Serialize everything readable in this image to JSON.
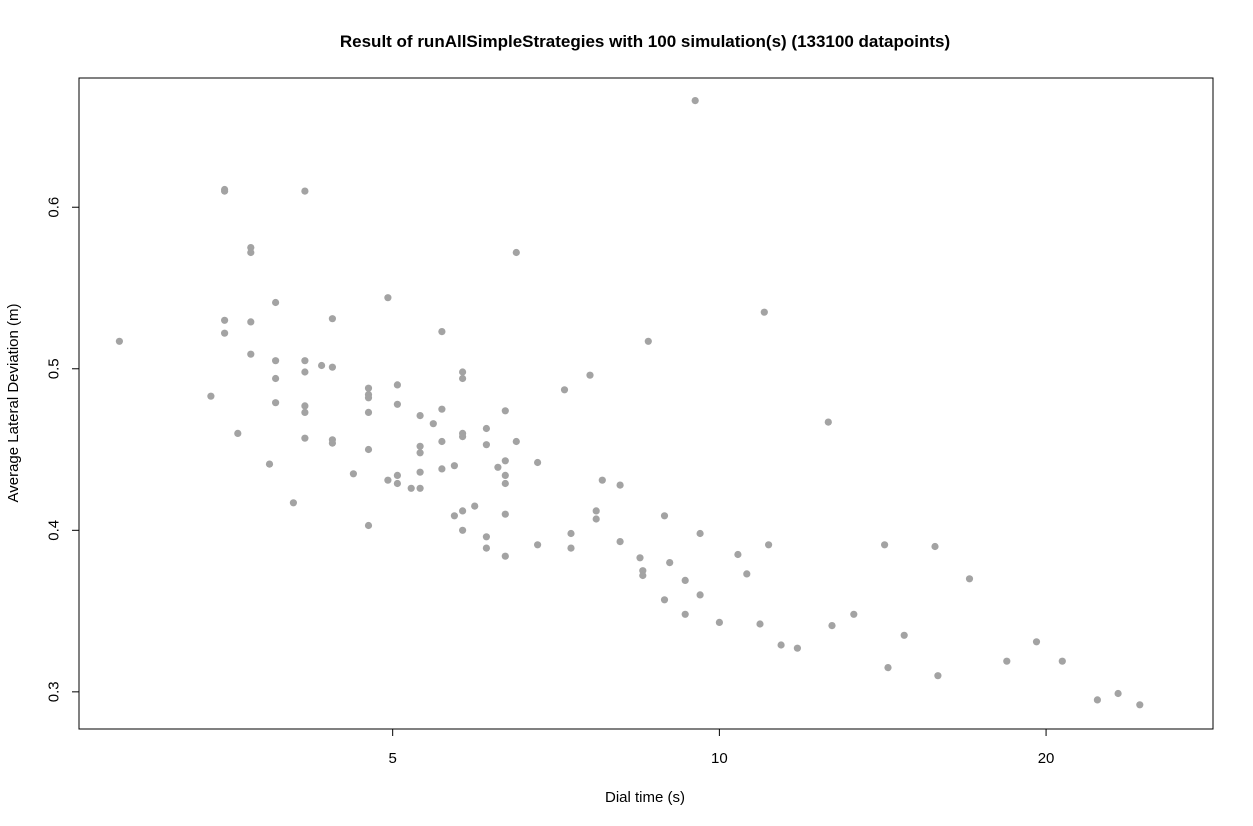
{
  "chart_data": {
    "type": "scatter",
    "title": "Result of runAllSimpleStrategies with 100 simulation(s) (133100 datapoints)",
    "xlabel": "Dial time (s)",
    "ylabel": "Average Lateral Deviation (m)",
    "x_scale": "log",
    "xlim": [
      2.57,
      28.5
    ],
    "ylim": [
      0.277,
      0.68
    ],
    "x_ticks": [
      5,
      10,
      20
    ],
    "x_tick_labels": [
      "5",
      "10",
      "20"
    ],
    "y_ticks": [
      0.3,
      0.4,
      0.5,
      0.6
    ],
    "y_tick_labels": [
      "0.3",
      "0.4",
      "0.5",
      "0.6"
    ],
    "grid": false,
    "point_color": "#a3a3a3",
    "points": [
      {
        "x": 2.8,
        "y": 0.517
      },
      {
        "x": 3.4,
        "y": 0.483
      },
      {
        "x": 3.5,
        "y": 0.611
      },
      {
        "x": 3.5,
        "y": 0.61
      },
      {
        "x": 3.5,
        "y": 0.53
      },
      {
        "x": 3.5,
        "y": 0.522
      },
      {
        "x": 3.6,
        "y": 0.46
      },
      {
        "x": 3.7,
        "y": 0.575
      },
      {
        "x": 3.7,
        "y": 0.572
      },
      {
        "x": 3.7,
        "y": 0.529
      },
      {
        "x": 3.7,
        "y": 0.509
      },
      {
        "x": 3.85,
        "y": 0.441
      },
      {
        "x": 3.9,
        "y": 0.541
      },
      {
        "x": 3.9,
        "y": 0.505
      },
      {
        "x": 3.9,
        "y": 0.494
      },
      {
        "x": 3.9,
        "y": 0.479
      },
      {
        "x": 4.05,
        "y": 0.417
      },
      {
        "x": 4.15,
        "y": 0.61
      },
      {
        "x": 4.15,
        "y": 0.505
      },
      {
        "x": 4.15,
        "y": 0.498
      },
      {
        "x": 4.15,
        "y": 0.477
      },
      {
        "x": 4.15,
        "y": 0.473
      },
      {
        "x": 4.15,
        "y": 0.457
      },
      {
        "x": 4.3,
        "y": 0.502
      },
      {
        "x": 4.4,
        "y": 0.531
      },
      {
        "x": 4.4,
        "y": 0.501
      },
      {
        "x": 4.4,
        "y": 0.456
      },
      {
        "x": 4.4,
        "y": 0.454
      },
      {
        "x": 4.6,
        "y": 0.435
      },
      {
        "x": 4.75,
        "y": 0.488
      },
      {
        "x": 4.75,
        "y": 0.484
      },
      {
        "x": 4.75,
        "y": 0.482
      },
      {
        "x": 4.75,
        "y": 0.473
      },
      {
        "x": 4.75,
        "y": 0.45
      },
      {
        "x": 4.75,
        "y": 0.403
      },
      {
        "x": 4.95,
        "y": 0.544
      },
      {
        "x": 4.95,
        "y": 0.431
      },
      {
        "x": 5.05,
        "y": 0.49
      },
      {
        "x": 5.05,
        "y": 0.478
      },
      {
        "x": 5.05,
        "y": 0.434
      },
      {
        "x": 5.05,
        "y": 0.429
      },
      {
        "x": 5.2,
        "y": 0.426
      },
      {
        "x": 5.3,
        "y": 0.471
      },
      {
        "x": 5.3,
        "y": 0.452
      },
      {
        "x": 5.3,
        "y": 0.448
      },
      {
        "x": 5.3,
        "y": 0.436
      },
      {
        "x": 5.3,
        "y": 0.426
      },
      {
        "x": 5.45,
        "y": 0.466
      },
      {
        "x": 5.55,
        "y": 0.523
      },
      {
        "x": 5.55,
        "y": 0.475
      },
      {
        "x": 5.55,
        "y": 0.455
      },
      {
        "x": 5.55,
        "y": 0.438
      },
      {
        "x": 5.7,
        "y": 0.44
      },
      {
        "x": 5.7,
        "y": 0.409
      },
      {
        "x": 5.8,
        "y": 0.498
      },
      {
        "x": 5.8,
        "y": 0.494
      },
      {
        "x": 5.8,
        "y": 0.46
      },
      {
        "x": 5.8,
        "y": 0.458
      },
      {
        "x": 5.8,
        "y": 0.412
      },
      {
        "x": 5.8,
        "y": 0.4
      },
      {
        "x": 5.95,
        "y": 0.415
      },
      {
        "x": 6.1,
        "y": 0.463
      },
      {
        "x": 6.1,
        "y": 0.453
      },
      {
        "x": 6.1,
        "y": 0.396
      },
      {
        "x": 6.1,
        "y": 0.389
      },
      {
        "x": 6.25,
        "y": 0.439
      },
      {
        "x": 6.35,
        "y": 0.474
      },
      {
        "x": 6.35,
        "y": 0.443
      },
      {
        "x": 6.35,
        "y": 0.434
      },
      {
        "x": 6.35,
        "y": 0.429
      },
      {
        "x": 6.35,
        "y": 0.41
      },
      {
        "x": 6.35,
        "y": 0.384
      },
      {
        "x": 6.5,
        "y": 0.572
      },
      {
        "x": 6.5,
        "y": 0.455
      },
      {
        "x": 6.8,
        "y": 0.442
      },
      {
        "x": 6.8,
        "y": 0.391
      },
      {
        "x": 7.2,
        "y": 0.487
      },
      {
        "x": 7.3,
        "y": 0.398
      },
      {
        "x": 7.3,
        "y": 0.389
      },
      {
        "x": 7.6,
        "y": 0.496
      },
      {
        "x": 7.7,
        "y": 0.412
      },
      {
        "x": 7.7,
        "y": 0.407
      },
      {
        "x": 7.8,
        "y": 0.431
      },
      {
        "x": 8.1,
        "y": 0.428
      },
      {
        "x": 8.1,
        "y": 0.393
      },
      {
        "x": 8.45,
        "y": 0.383
      },
      {
        "x": 8.5,
        "y": 0.375
      },
      {
        "x": 8.5,
        "y": 0.372
      },
      {
        "x": 8.6,
        "y": 0.517
      },
      {
        "x": 8.9,
        "y": 0.409
      },
      {
        "x": 8.9,
        "y": 0.357
      },
      {
        "x": 9.0,
        "y": 0.38
      },
      {
        "x": 9.3,
        "y": 0.369
      },
      {
        "x": 9.3,
        "y": 0.348
      },
      {
        "x": 9.6,
        "y": 0.398
      },
      {
        "x": 9.6,
        "y": 0.36
      },
      {
        "x": 9.5,
        "y": 0.666
      },
      {
        "x": 10.0,
        "y": 0.343
      },
      {
        "x": 10.4,
        "y": 0.385
      },
      {
        "x": 10.6,
        "y": 0.373
      },
      {
        "x": 11.0,
        "y": 0.535
      },
      {
        "x": 11.1,
        "y": 0.391
      },
      {
        "x": 10.9,
        "y": 0.342
      },
      {
        "x": 11.4,
        "y": 0.329
      },
      {
        "x": 11.8,
        "y": 0.327
      },
      {
        "x": 12.6,
        "y": 0.467
      },
      {
        "x": 12.7,
        "y": 0.341
      },
      {
        "x": 13.3,
        "y": 0.348
      },
      {
        "x": 14.2,
        "y": 0.391
      },
      {
        "x": 14.3,
        "y": 0.315
      },
      {
        "x": 14.8,
        "y": 0.335
      },
      {
        "x": 15.8,
        "y": 0.39
      },
      {
        "x": 15.9,
        "y": 0.31
      },
      {
        "x": 17.0,
        "y": 0.37
      },
      {
        "x": 18.4,
        "y": 0.319
      },
      {
        "x": 19.6,
        "y": 0.331
      },
      {
        "x": 20.7,
        "y": 0.319
      },
      {
        "x": 22.3,
        "y": 0.295
      },
      {
        "x": 23.3,
        "y": 0.299
      },
      {
        "x": 24.4,
        "y": 0.292
      }
    ]
  }
}
